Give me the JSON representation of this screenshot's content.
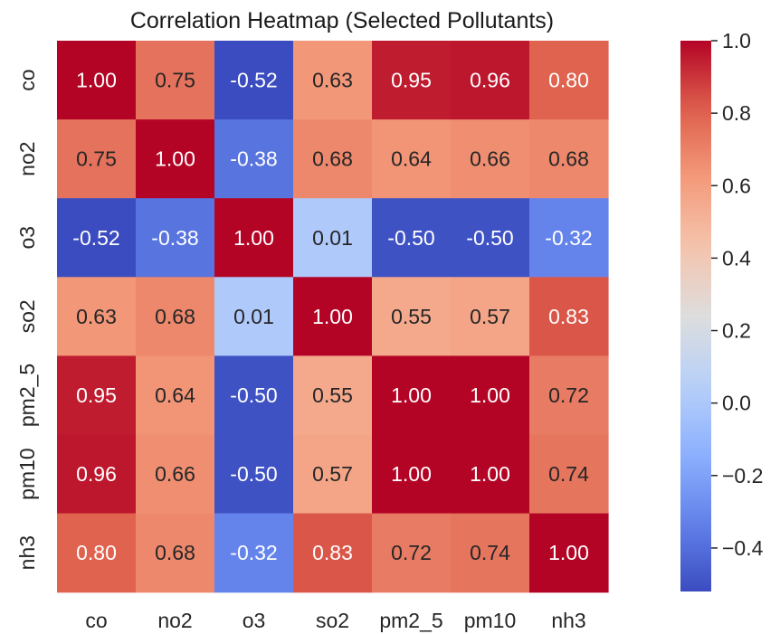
{
  "chart_data": {
    "type": "heatmap",
    "title": "Correlation Heatmap (Selected Pollutants)",
    "x_labels": [
      "co",
      "no2",
      "o3",
      "so2",
      "pm2_5",
      "pm10",
      "nh3"
    ],
    "y_labels": [
      "co",
      "no2",
      "o3",
      "so2",
      "pm2_5",
      "pm10",
      "nh3"
    ],
    "values": [
      [
        1.0,
        0.75,
        -0.52,
        0.63,
        0.95,
        0.96,
        0.8
      ],
      [
        0.75,
        1.0,
        -0.38,
        0.68,
        0.64,
        0.66,
        0.68
      ],
      [
        -0.52,
        -0.38,
        1.0,
        0.01,
        -0.5,
        -0.5,
        -0.32
      ],
      [
        0.63,
        0.68,
        0.01,
        1.0,
        0.55,
        0.57,
        0.83
      ],
      [
        0.95,
        0.64,
        -0.5,
        0.55,
        1.0,
        1.0,
        0.72
      ],
      [
        0.96,
        0.66,
        -0.5,
        0.57,
        1.0,
        1.0,
        0.74
      ],
      [
        0.8,
        0.68,
        -0.32,
        0.83,
        0.72,
        0.74,
        1.0
      ]
    ],
    "colorbar": {
      "colormap": "coolwarm",
      "vmin": -0.52,
      "vmax": 1.0,
      "ticks": [
        1.0,
        0.8,
        0.6,
        0.4,
        0.2,
        0.0,
        -0.2,
        -0.4
      ],
      "tick_labels": [
        "1.0",
        "0.8",
        "0.6",
        "0.4",
        "0.2",
        "0.0",
        "−0.2",
        "−0.4"
      ]
    },
    "annotation_format": "0.00",
    "grid": false
  }
}
